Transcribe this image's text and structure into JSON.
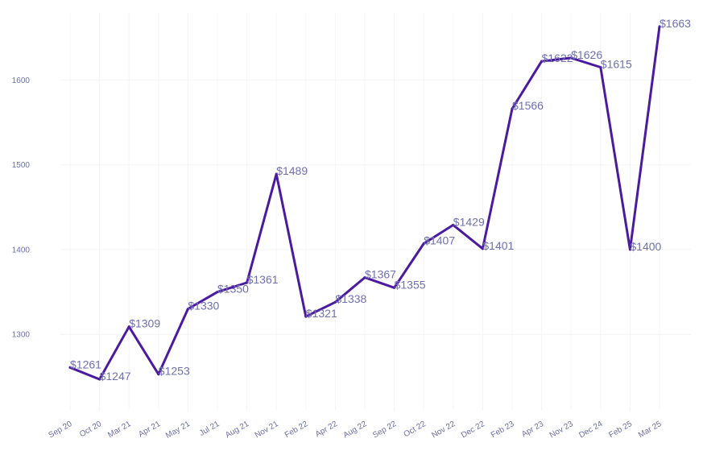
{
  "chart_data": {
    "type": "line",
    "title": "",
    "xlabel": "",
    "ylabel": "",
    "categories": [
      "Sep 20",
      "Oct 20",
      "Mar 21",
      "Apr 21",
      "May 21",
      "Jul 21",
      "Aug 21",
      "Nov 21",
      "Feb 22",
      "Apr 22",
      "Aug 22",
      "Sep 22",
      "Oct 22",
      "Nov 22",
      "Dec 22",
      "Feb 23",
      "Apr 23",
      "Nov 23",
      "Dec 24",
      "Feb 25",
      "Mar 25"
    ],
    "values": [
      1261,
      1247,
      1309,
      1253,
      1330,
      1350,
      1361,
      1489,
      1321,
      1338,
      1367,
      1355,
      1407,
      1429,
      1401,
      1566,
      1622,
      1626,
      1615,
      1400,
      1663
    ],
    "data_labels": [
      "$1261",
      "$1247",
      "$1309",
      "$1253",
      "$1330",
      "$1350",
      "$1361",
      "$1489",
      "$1321",
      "$1338",
      "$1367",
      "$1355",
      "$1407",
      "$1429",
      "$1401",
      "$1566",
      "$1622",
      "$1626",
      "$1615",
      "$1400",
      "$1663"
    ],
    "y_ticks": [
      1300,
      1400,
      1500,
      1600
    ],
    "ylim": [
      1210,
      1680
    ],
    "grid": true,
    "legend": "none",
    "line_color": "#4a1aa0"
  }
}
